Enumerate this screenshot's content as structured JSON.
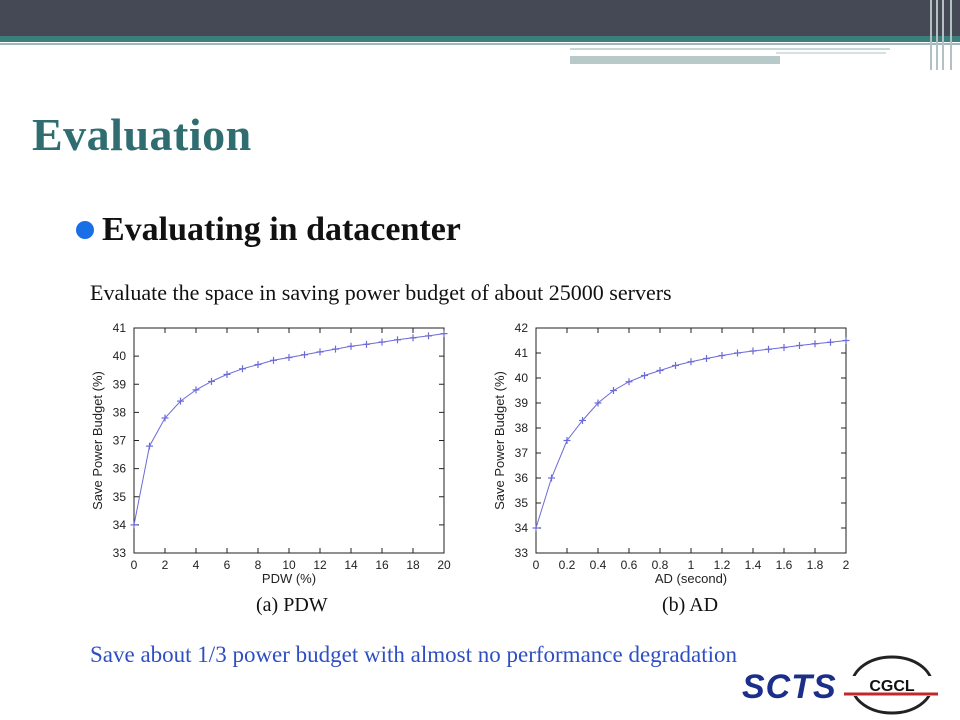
{
  "slide": {
    "title": "Evaluation",
    "bullet": "Evaluating in datacenter",
    "subtext": "Evaluate the space in saving power budget of about 25000 servers",
    "note": "Save about 1/3 power budget with almost no performance degradation",
    "logos": {
      "sccs": "SCTS",
      "cgcl": "CGCL"
    },
    "colors": {
      "title": "#2f6d71",
      "accent": "#3b7f7c",
      "note": "#2e4fc4",
      "series": "#6b6bd9"
    }
  },
  "chart_data": [
    {
      "type": "line",
      "caption": "(a)  PDW",
      "xlabel": "PDW (%)",
      "ylabel": "Save Power Budget (%)",
      "xlim": [
        0,
        20
      ],
      "ylim": [
        33,
        41
      ],
      "xticks": [
        0,
        2,
        4,
        6,
        8,
        10,
        12,
        14,
        16,
        18,
        20
      ],
      "yticks": [
        33,
        34,
        35,
        36,
        37,
        38,
        39,
        40,
        41
      ],
      "x": [
        0,
        1,
        2,
        3,
        4,
        5,
        6,
        7,
        8,
        9,
        10,
        11,
        12,
        13,
        14,
        15,
        16,
        17,
        18,
        19,
        20
      ],
      "y": [
        34.0,
        36.8,
        37.8,
        38.4,
        38.8,
        39.1,
        39.35,
        39.55,
        39.7,
        39.85,
        39.95,
        40.05,
        40.15,
        40.25,
        40.35,
        40.42,
        40.5,
        40.58,
        40.65,
        40.72,
        40.8
      ]
    },
    {
      "type": "line",
      "caption": "(b)  AD",
      "xlabel": "AD (second)",
      "ylabel": "Save Power Budget (%)",
      "xlim": [
        0,
        2
      ],
      "ylim": [
        33,
        42
      ],
      "xticks": [
        0,
        0.2,
        0.4,
        0.6,
        0.8,
        1,
        1.2,
        1.4,
        1.6,
        1.8,
        2
      ],
      "xticklabels": [
        "0",
        "0.2",
        "0.4",
        "0.6",
        "0.8",
        "1",
        "1.2",
        "1.4",
        "1.6",
        "1.8",
        "2"
      ],
      "yticks": [
        33,
        34,
        35,
        36,
        37,
        38,
        39,
        40,
        41,
        42
      ],
      "x": [
        0,
        0.1,
        0.2,
        0.3,
        0.4,
        0.5,
        0.6,
        0.7,
        0.8,
        0.9,
        1.0,
        1.1,
        1.2,
        1.3,
        1.4,
        1.5,
        1.6,
        1.7,
        1.8,
        1.9,
        2.0
      ],
      "y": [
        34.0,
        36.0,
        37.5,
        38.3,
        39.0,
        39.5,
        39.85,
        40.1,
        40.3,
        40.5,
        40.65,
        40.78,
        40.9,
        41.0,
        41.08,
        41.15,
        41.22,
        41.3,
        41.37,
        41.43,
        41.5
      ]
    }
  ]
}
